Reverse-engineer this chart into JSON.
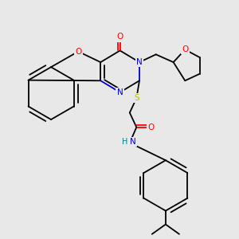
{
  "bg": "#e8e8e8",
  "C": "#000000",
  "N": "#0000cc",
  "O": "#ff0000",
  "S": "#bbbb00",
  "H": "#008080",
  "lw": 1.3,
  "fs": 7.5,
  "figsize": [
    3.0,
    3.0
  ],
  "dpi": 100
}
